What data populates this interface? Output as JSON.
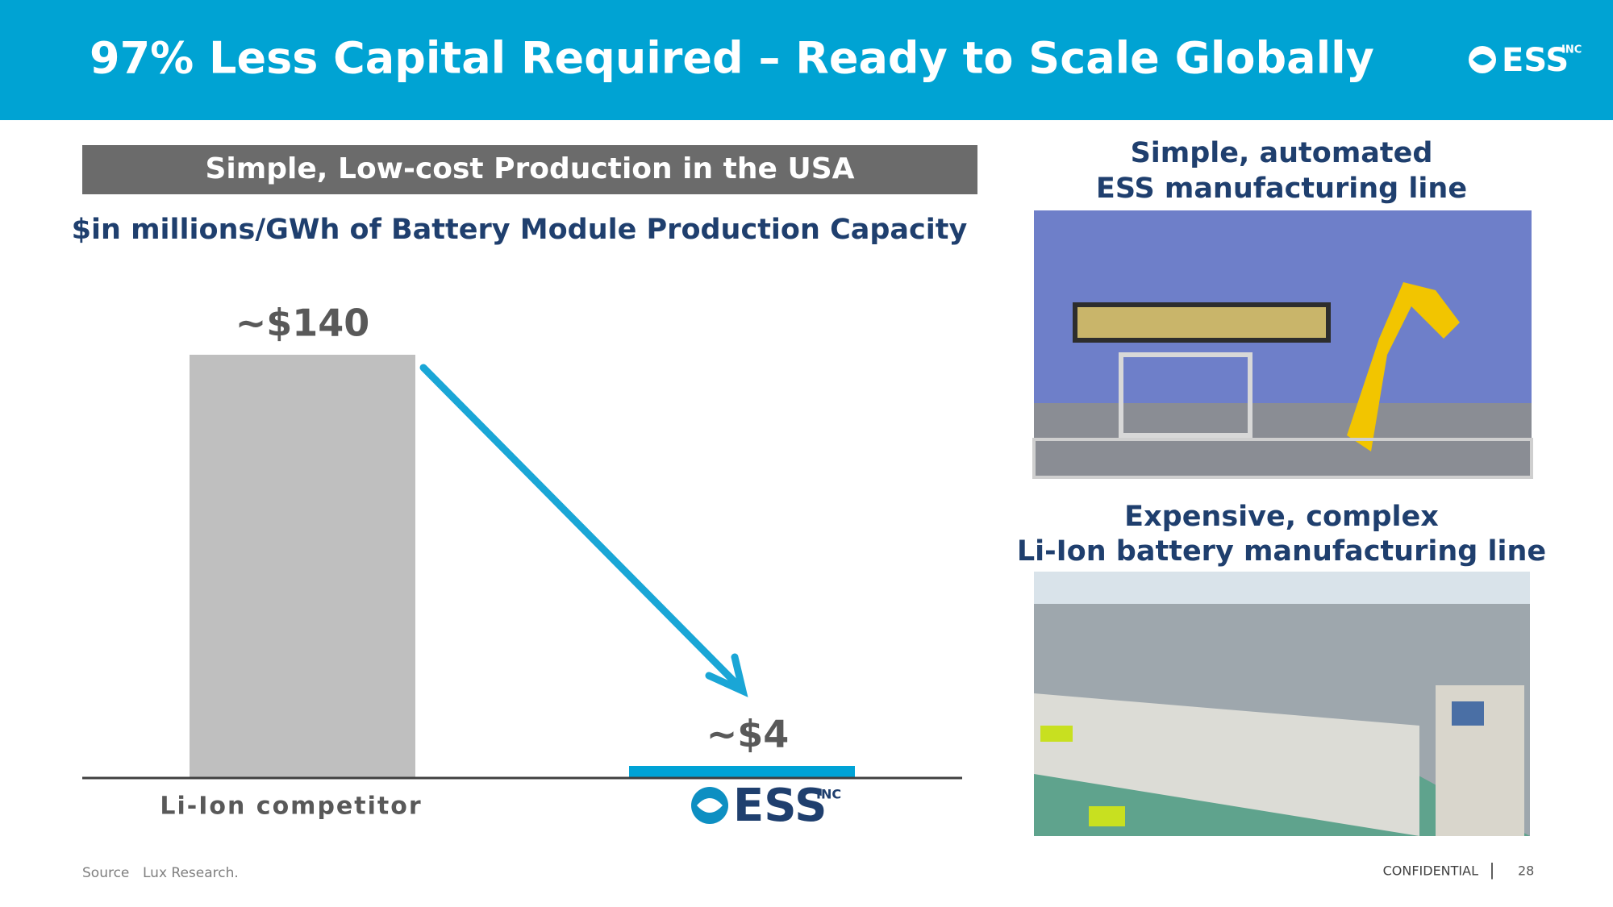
{
  "header": {
    "title": "97% Less Capital Required – Ready to Scale Globally"
  },
  "logo": {
    "name": "ESS",
    "suffix": "INC"
  },
  "section_title": "Simple, Low-cost Production in the USA",
  "chart_data": {
    "type": "bar",
    "subtitle": "$in millions/GWh of Battery Module Production Capacity",
    "categories": [
      "Li-Ion competitor",
      null
    ],
    "values": [
      140,
      4
    ],
    "value_labels": [
      "~$140",
      "~$4"
    ],
    "colors": [
      "#bfbfbf",
      "#00a3d6"
    ]
  },
  "photos": [
    {
      "caption": [
        "Simple, automated",
        "ESS manufacturing line"
      ]
    },
    {
      "caption": [
        "Expensive, complex",
        "Li-Ion battery manufacturing line"
      ]
    }
  ],
  "footer": {
    "source_label": "Source",
    "source": "Lux Research.",
    "confidential": "CONFIDENTIAL",
    "separator": "|",
    "page": "28"
  }
}
